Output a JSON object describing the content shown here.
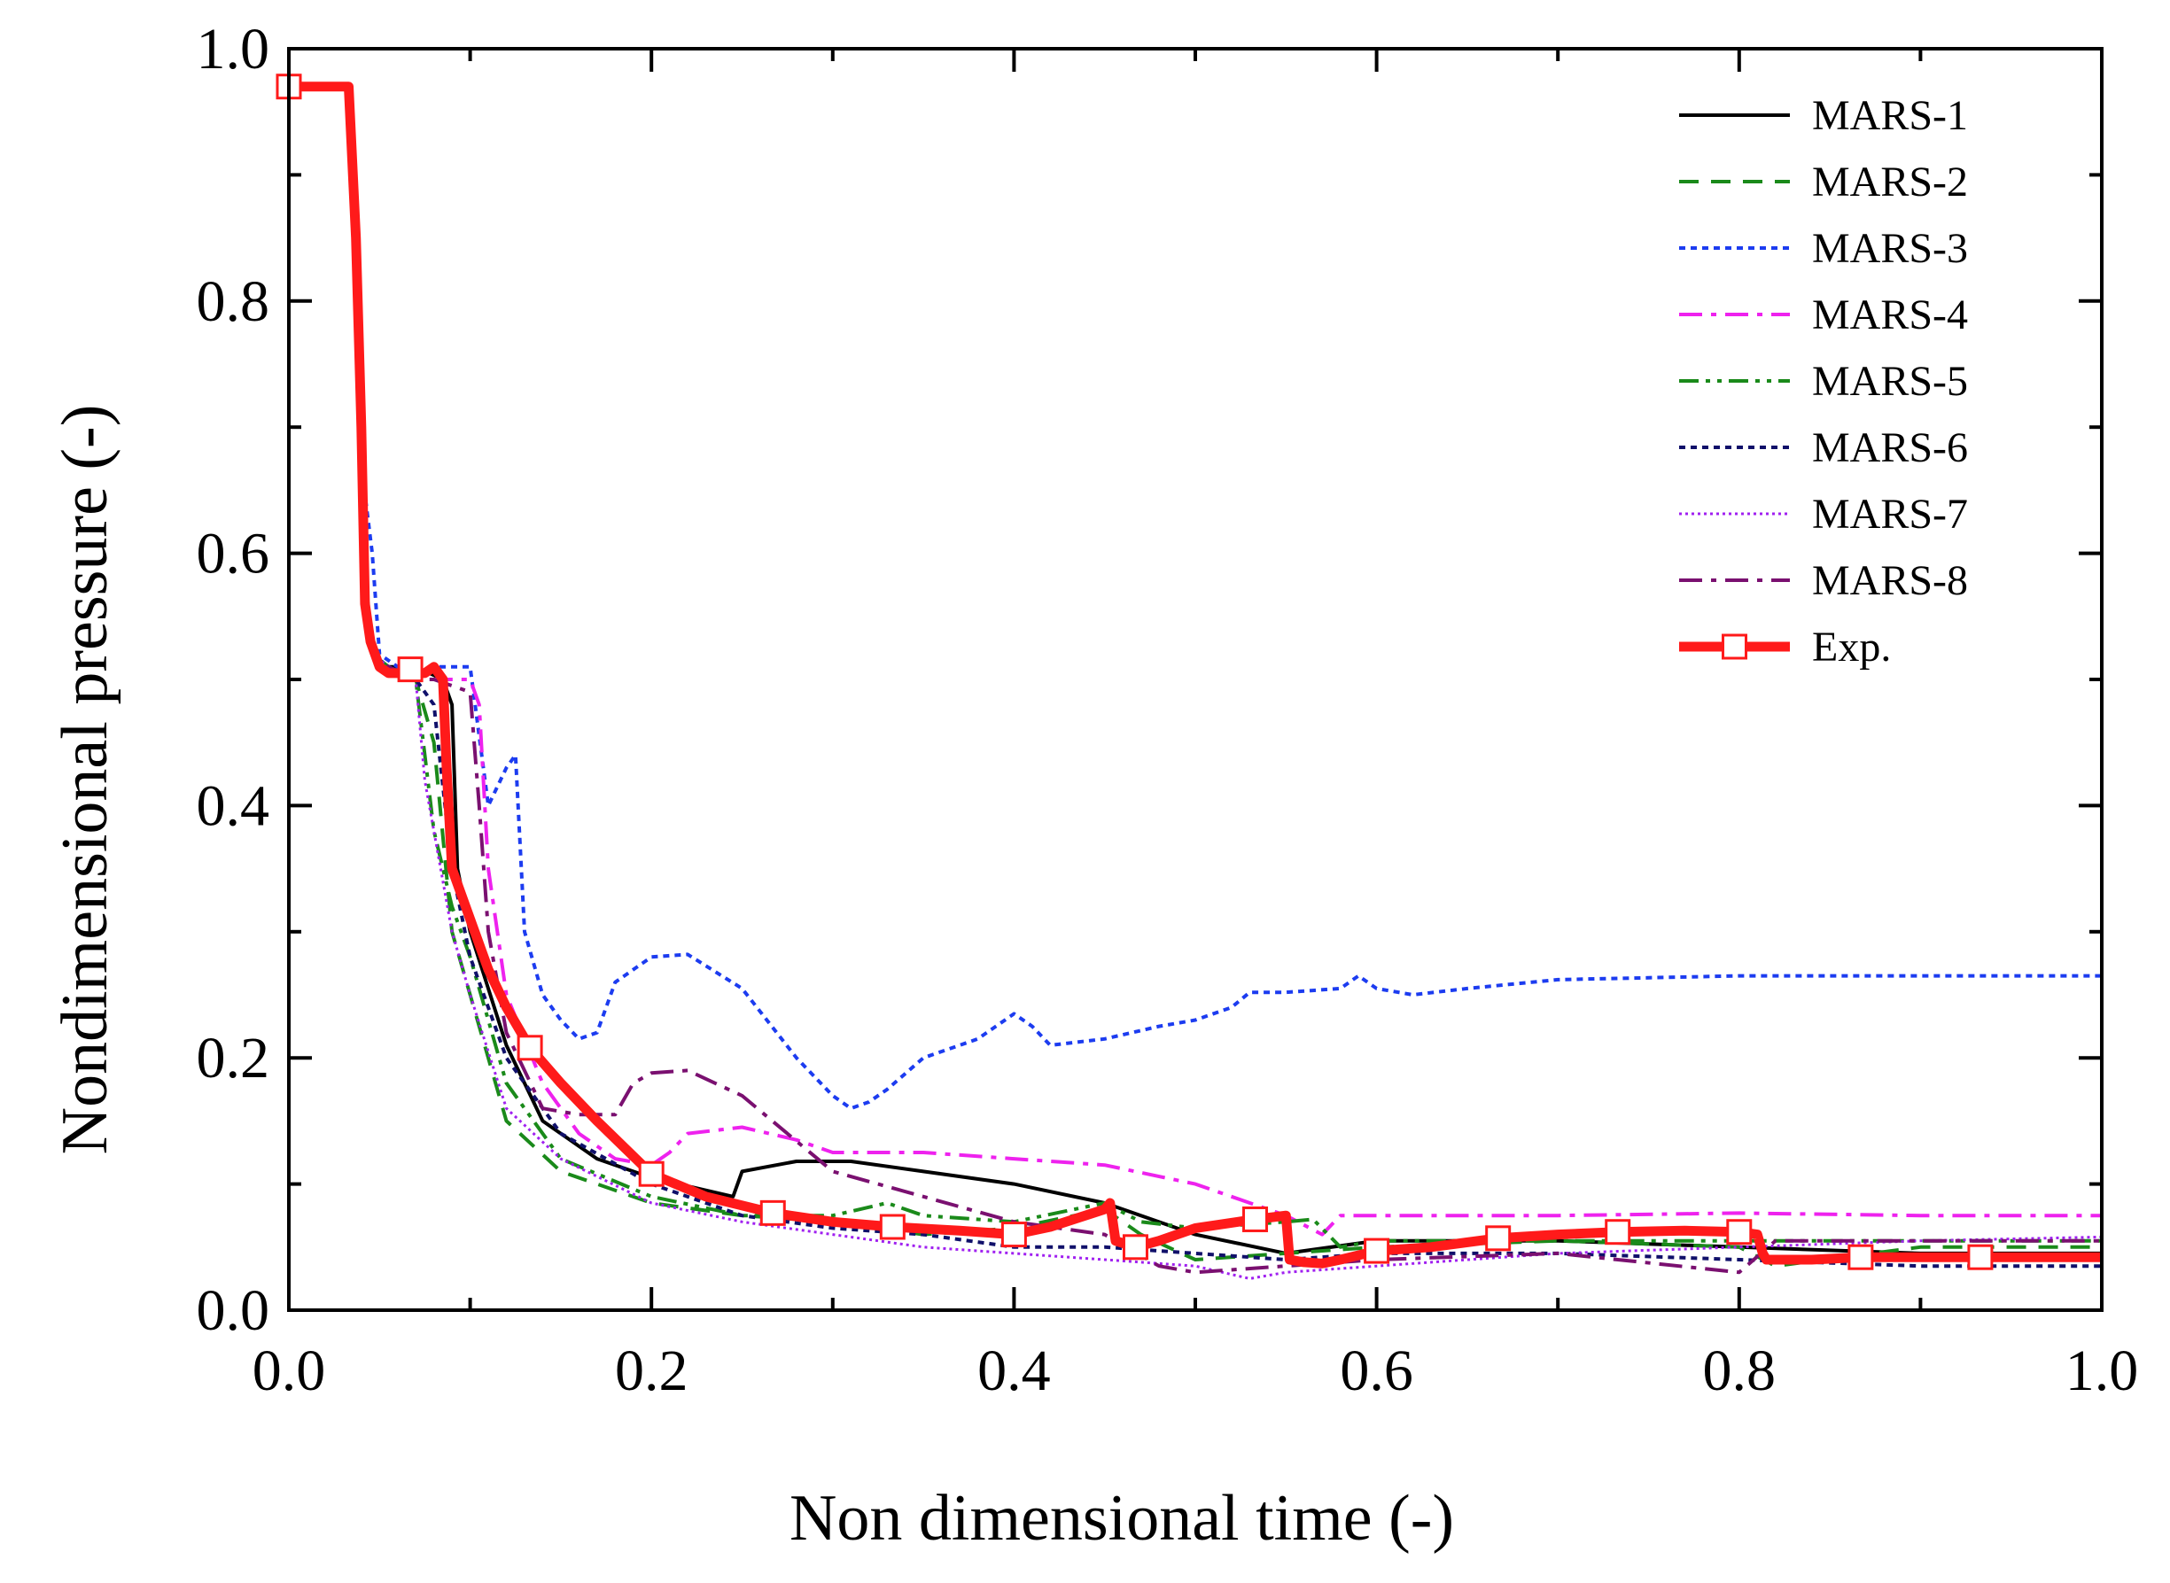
{
  "chart_data": {
    "type": "line",
    "title": "",
    "xlabel": "Non dimensional time (-)",
    "ylabel": "Nondimensional pressure (-)",
    "xlim": [
      0.0,
      1.0
    ],
    "ylim": [
      0.0,
      1.0
    ],
    "xticks": [
      0.0,
      0.2,
      0.4,
      0.6,
      0.8,
      1.0
    ],
    "yticks": [
      0.0,
      0.2,
      0.4,
      0.6,
      0.8,
      1.0
    ],
    "xtick_labels": [
      "0.0",
      "0.2",
      "0.4",
      "0.6",
      "0.8",
      "1.0"
    ],
    "ytick_labels": [
      "0.0",
      "0.2",
      "0.4",
      "0.6",
      "0.8",
      "1.0"
    ],
    "legend_position": "top-right",
    "grid": false,
    "series": [
      {
        "name": "MARS-1",
        "color": "#000000",
        "style": "solid",
        "x": [
          0.0,
          0.032,
          0.036,
          0.04,
          0.046,
          0.055,
          0.07,
          0.085,
          0.09,
          0.093,
          0.1,
          0.12,
          0.14,
          0.17,
          0.2,
          0.23,
          0.245,
          0.25,
          0.28,
          0.31,
          0.35,
          0.4,
          0.45,
          0.5,
          0.55,
          0.6,
          0.7,
          0.8,
          0.9,
          1.0
        ],
        "y": [
          0.97,
          0.97,
          0.9,
          0.62,
          0.52,
          0.51,
          0.51,
          0.5,
          0.48,
          0.35,
          0.3,
          0.21,
          0.15,
          0.12,
          0.105,
          0.095,
          0.09,
          0.11,
          0.118,
          0.118,
          0.11,
          0.1,
          0.085,
          0.06,
          0.045,
          0.055,
          0.055,
          0.05,
          0.045,
          0.045
        ]
      },
      {
        "name": "MARS-2",
        "color": "#1a8a1a",
        "style": "dashed",
        "x": [
          0.0,
          0.032,
          0.036,
          0.04,
          0.046,
          0.055,
          0.07,
          0.08,
          0.09,
          0.1,
          0.12,
          0.15,
          0.2,
          0.25,
          0.3,
          0.35,
          0.4,
          0.45,
          0.47,
          0.5,
          0.55,
          0.6,
          0.7,
          0.8,
          0.82,
          0.9,
          1.0
        ],
        "y": [
          0.97,
          0.97,
          0.9,
          0.62,
          0.52,
          0.51,
          0.5,
          0.45,
          0.3,
          0.25,
          0.15,
          0.11,
          0.085,
          0.075,
          0.07,
          0.06,
          0.065,
          0.08,
          0.06,
          0.04,
          0.045,
          0.05,
          0.055,
          0.05,
          0.035,
          0.05,
          0.05
        ]
      },
      {
        "name": "MARS-3",
        "color": "#1c3cf0",
        "style": "dotted",
        "x": [
          0.0,
          0.032,
          0.036,
          0.04,
          0.046,
          0.05,
          0.06,
          0.07,
          0.08,
          0.09,
          0.1,
          0.11,
          0.12,
          0.125,
          0.13,
          0.14,
          0.15,
          0.16,
          0.17,
          0.18,
          0.2,
          0.22,
          0.25,
          0.28,
          0.3,
          0.31,
          0.32,
          0.33,
          0.35,
          0.38,
          0.4,
          0.41,
          0.42,
          0.45,
          0.48,
          0.5,
          0.52,
          0.53,
          0.55,
          0.58,
          0.59,
          0.6,
          0.62,
          0.65,
          0.7,
          0.8,
          0.9,
          1.0
        ],
        "y": [
          0.97,
          0.97,
          0.9,
          0.67,
          0.6,
          0.52,
          0.51,
          0.51,
          0.51,
          0.51,
          0.51,
          0.4,
          0.43,
          0.44,
          0.3,
          0.25,
          0.23,
          0.215,
          0.22,
          0.26,
          0.28,
          0.282,
          0.255,
          0.2,
          0.17,
          0.16,
          0.165,
          0.175,
          0.2,
          0.215,
          0.235,
          0.225,
          0.21,
          0.215,
          0.225,
          0.23,
          0.24,
          0.252,
          0.252,
          0.255,
          0.265,
          0.255,
          0.25,
          0.255,
          0.262,
          0.265,
          0.265,
          0.265
        ]
      },
      {
        "name": "MARS-4",
        "color": "#ee22ee",
        "style": "dashdot",
        "x": [
          0.0,
          0.032,
          0.036,
          0.04,
          0.046,
          0.055,
          0.07,
          0.08,
          0.1,
          0.105,
          0.11,
          0.12,
          0.14,
          0.16,
          0.18,
          0.2,
          0.21,
          0.22,
          0.25,
          0.28,
          0.3,
          0.35,
          0.4,
          0.45,
          0.5,
          0.55,
          0.57,
          0.58,
          0.6,
          0.7,
          0.8,
          0.9,
          1.0
        ],
        "y": [
          0.97,
          0.97,
          0.9,
          0.62,
          0.52,
          0.51,
          0.5,
          0.5,
          0.5,
          0.48,
          0.35,
          0.25,
          0.18,
          0.14,
          0.12,
          0.115,
          0.125,
          0.14,
          0.145,
          0.135,
          0.125,
          0.125,
          0.12,
          0.115,
          0.1,
          0.075,
          0.06,
          0.075,
          0.075,
          0.075,
          0.077,
          0.075,
          0.075
        ]
      },
      {
        "name": "MARS-5",
        "color": "#1a8a1a",
        "style": "dashdotdot",
        "x": [
          0.0,
          0.032,
          0.036,
          0.04,
          0.046,
          0.055,
          0.07,
          0.08,
          0.09,
          0.1,
          0.12,
          0.15,
          0.2,
          0.25,
          0.3,
          0.33,
          0.35,
          0.4,
          0.45,
          0.47,
          0.5,
          0.55,
          0.565,
          0.58,
          0.6,
          0.7,
          0.8,
          0.9,
          1.0
        ],
        "y": [
          0.97,
          0.97,
          0.9,
          0.62,
          0.52,
          0.51,
          0.5,
          0.38,
          0.32,
          0.28,
          0.18,
          0.12,
          0.09,
          0.075,
          0.075,
          0.085,
          0.075,
          0.07,
          0.085,
          0.07,
          0.065,
          0.07,
          0.072,
          0.05,
          0.055,
          0.055,
          0.055,
          0.055,
          0.055
        ]
      },
      {
        "name": "MARS-6",
        "color": "#10106a",
        "style": "dotted",
        "x": [
          0.0,
          0.032,
          0.036,
          0.04,
          0.046,
          0.055,
          0.07,
          0.08,
          0.09,
          0.1,
          0.12,
          0.15,
          0.2,
          0.25,
          0.3,
          0.35,
          0.4,
          0.45,
          0.5,
          0.55,
          0.6,
          0.7,
          0.8,
          0.9,
          1.0
        ],
        "y": [
          0.97,
          0.97,
          0.9,
          0.62,
          0.52,
          0.51,
          0.5,
          0.48,
          0.35,
          0.28,
          0.2,
          0.14,
          0.1,
          0.075,
          0.065,
          0.06,
          0.05,
          0.05,
          0.045,
          0.04,
          0.045,
          0.045,
          0.04,
          0.035,
          0.035
        ]
      },
      {
        "name": "MARS-7",
        "color": "#a020f0",
        "style": "finedotted",
        "x": [
          0.0,
          0.032,
          0.036,
          0.04,
          0.046,
          0.055,
          0.07,
          0.075,
          0.09,
          0.1,
          0.12,
          0.15,
          0.2,
          0.25,
          0.3,
          0.35,
          0.4,
          0.45,
          0.5,
          0.53,
          0.55,
          0.6,
          0.7,
          0.8,
          0.9,
          1.0
        ],
        "y": [
          0.97,
          0.97,
          0.9,
          0.62,
          0.52,
          0.51,
          0.5,
          0.42,
          0.3,
          0.25,
          0.16,
          0.12,
          0.085,
          0.07,
          0.06,
          0.05,
          0.045,
          0.04,
          0.035,
          0.025,
          0.03,
          0.035,
          0.045,
          0.05,
          0.055,
          0.058
        ]
      },
      {
        "name": "MARS-8",
        "color": "#7a1070",
        "style": "dashdot",
        "x": [
          0.0,
          0.032,
          0.036,
          0.04,
          0.046,
          0.055,
          0.07,
          0.08,
          0.1,
          0.105,
          0.11,
          0.12,
          0.14,
          0.16,
          0.18,
          0.19,
          0.2,
          0.22,
          0.25,
          0.3,
          0.35,
          0.4,
          0.45,
          0.48,
          0.5,
          0.6,
          0.7,
          0.8,
          0.82,
          0.9,
          1.0
        ],
        "y": [
          0.97,
          0.97,
          0.9,
          0.62,
          0.52,
          0.51,
          0.5,
          0.5,
          0.49,
          0.4,
          0.3,
          0.22,
          0.16,
          0.155,
          0.155,
          0.18,
          0.188,
          0.19,
          0.17,
          0.11,
          0.09,
          0.07,
          0.06,
          0.035,
          0.03,
          0.04,
          0.045,
          0.03,
          0.055,
          0.055,
          0.055
        ]
      },
      {
        "name": "Exp.",
        "color": "#ff1a1a",
        "style": "thick",
        "marker": "open-square",
        "x": [
          0.0,
          0.033,
          0.037,
          0.04,
          0.042,
          0.045,
          0.05,
          0.055,
          0.065,
          0.075,
          0.08,
          0.085,
          0.087,
          0.09,
          0.1,
          0.11,
          0.12,
          0.133,
          0.15,
          0.17,
          0.2,
          0.23,
          0.267,
          0.3,
          0.333,
          0.37,
          0.4,
          0.42,
          0.45,
          0.453,
          0.456,
          0.467,
          0.48,
          0.5,
          0.533,
          0.55,
          0.552,
          0.56,
          0.57,
          0.58,
          0.6,
          0.63,
          0.667,
          0.7,
          0.733,
          0.77,
          0.8,
          0.81,
          0.813,
          0.815,
          0.84,
          0.867,
          0.9,
          0.933,
          0.97,
          1.0
        ],
        "y": [
          0.97,
          0.97,
          0.85,
          0.7,
          0.56,
          0.53,
          0.51,
          0.505,
          0.505,
          0.505,
          0.51,
          0.5,
          0.43,
          0.35,
          0.31,
          0.27,
          0.24,
          0.208,
          0.18,
          0.15,
          0.108,
          0.09,
          0.077,
          0.07,
          0.066,
          0.063,
          0.06,
          0.066,
          0.08,
          0.085,
          0.055,
          0.05,
          0.055,
          0.065,
          0.072,
          0.075,
          0.04,
          0.038,
          0.037,
          0.04,
          0.047,
          0.05,
          0.057,
          0.06,
          0.062,
          0.063,
          0.062,
          0.06,
          0.045,
          0.04,
          0.04,
          0.042,
          0.042,
          0.042,
          0.042,
          0.042
        ],
        "marker_x": [
          0.0,
          0.067,
          0.133,
          0.2,
          0.267,
          0.333,
          0.4,
          0.467,
          0.533,
          0.6,
          0.667,
          0.733,
          0.8,
          0.867,
          0.933
        ],
        "marker_y": [
          0.97,
          0.508,
          0.208,
          0.108,
          0.077,
          0.066,
          0.06,
          0.05,
          0.072,
          0.047,
          0.057,
          0.062,
          0.062,
          0.042,
          0.042
        ]
      }
    ]
  }
}
